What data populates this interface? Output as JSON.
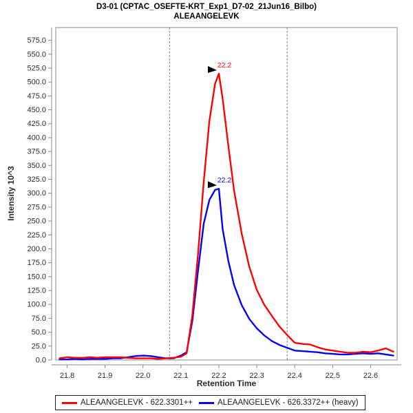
{
  "chart_data": {
    "type": "line",
    "title": "D3-01 (CPTAC_OSEFTE-KRT_Exp1_D7-02_21Jun16_Bilbo)",
    "subtitle": "ALEAANGELEVK",
    "xlabel": "Retention Time",
    "ylabel": "Intensity 10^3",
    "xlim": [
      21.77,
      22.67
    ],
    "ylim": [
      0,
      598
    ],
    "x_ticks": [
      21.8,
      21.9,
      22.0,
      22.1,
      22.2,
      22.3,
      22.4,
      22.5,
      22.6
    ],
    "y_ticks": [
      0,
      25,
      50,
      75,
      100,
      125,
      150,
      175,
      200,
      225,
      250,
      275,
      300,
      325,
      350,
      375,
      400,
      425,
      450,
      475,
      500,
      525,
      550,
      575
    ],
    "integration_boundaries": [
      22.07,
      22.38
    ],
    "axis_color": "#8a8a8a",
    "boundary_color": "#6e6e6e",
    "annotation_arrow_color": "#000000",
    "x": [
      21.78,
      21.8,
      21.82,
      21.84,
      21.86,
      21.88,
      21.9,
      21.92,
      21.94,
      21.96,
      21.98,
      22.0,
      22.02,
      22.04,
      22.06,
      22.08,
      22.1,
      22.115,
      22.13,
      22.145,
      22.16,
      22.175,
      22.19,
      22.2,
      22.21,
      22.225,
      22.24,
      22.26,
      22.28,
      22.3,
      22.32,
      22.34,
      22.36,
      22.38,
      22.4,
      22.42,
      22.44,
      22.46,
      22.48,
      22.5,
      22.52,
      22.54,
      22.56,
      22.58,
      22.6,
      22.62,
      22.64,
      22.66
    ],
    "series": [
      {
        "name": "ALEAANGELEVK - 622.3301++",
        "color": "#ff0000",
        "peak": {
          "label": "22.2",
          "time": 22.2,
          "intensity": 515
        },
        "y": [
          3,
          5,
          4,
          4,
          5,
          4,
          5,
          5,
          5,
          4,
          3,
          3,
          3,
          2,
          3,
          4,
          6,
          12,
          80,
          190,
          320,
          430,
          497,
          515,
          470,
          385,
          305,
          228,
          168,
          126,
          99,
          79,
          60,
          45,
          31,
          29,
          28,
          23,
          19,
          17,
          15,
          13,
          13,
          15,
          14,
          17,
          21,
          15
        ]
      },
      {
        "name": "ALEAANGELEVK - 626.3372++ (heavy)",
        "color": "#0000ff",
        "peak": {
          "label": "22.2",
          "time": 22.2,
          "intensity": 308
        },
        "y": [
          1,
          1,
          2,
          1,
          2,
          2,
          2,
          3,
          3,
          5,
          7,
          8,
          7,
          5,
          3,
          3,
          8,
          14,
          70,
          160,
          245,
          288,
          306,
          308,
          235,
          178,
          135,
          99,
          74,
          57,
          44,
          34,
          27,
          22,
          17,
          16,
          15,
          14,
          12,
          11,
          10,
          10,
          11,
          12,
          11,
          12,
          10,
          8
        ]
      }
    ]
  }
}
